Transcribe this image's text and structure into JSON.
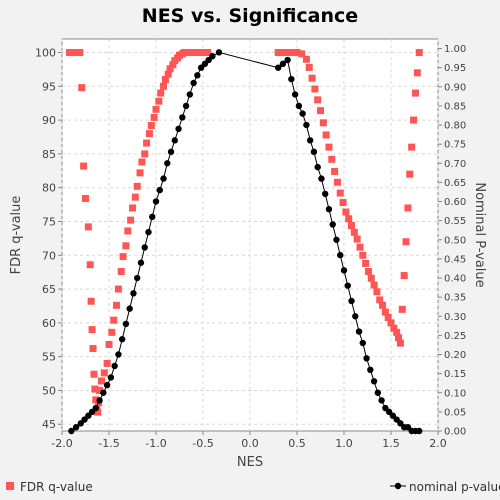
{
  "chart_data": {
    "type": "scatter",
    "title": "NES vs. Significance",
    "xlabel": "NES",
    "ylabel": "FDR q-value",
    "y2label": "Nominal P-value",
    "xlim": [
      -2.0,
      2.0
    ],
    "ylim": [
      44,
      102
    ],
    "y2lim": [
      0.0,
      1.025
    ],
    "xticks": [
      "-2.0",
      "-1.5",
      "-1.0",
      "-0.5",
      "0.0",
      "0.5",
      "1.0",
      "1.5",
      "2.0"
    ],
    "yticks": [
      "45",
      "50",
      "55",
      "60",
      "65",
      "70",
      "75",
      "80",
      "85",
      "90",
      "95",
      "100"
    ],
    "y2ticks": [
      "0.00",
      "0.05",
      "0.10",
      "0.15",
      "0.20",
      "0.25",
      "0.30",
      "0.35",
      "0.40",
      "0.45",
      "0.50",
      "0.55",
      "0.60",
      "0.65",
      "0.70",
      "0.75",
      "0.80",
      "0.85",
      "0.90",
      "0.95",
      "1.00"
    ],
    "grid": true,
    "legend_position": "bottom",
    "series": [
      {
        "name": "FDR q-value",
        "axis": "left",
        "color": "#ff5555",
        "marker": "square",
        "x": [
          -1.92,
          -1.88,
          -1.83,
          -1.81,
          -1.79,
          -1.77,
          -1.75,
          -1.72,
          -1.7,
          -1.69,
          -1.68,
          -1.67,
          -1.66,
          -1.65,
          -1.64,
          -1.63,
          -1.62,
          -1.61,
          -1.6,
          -1.58,
          -1.55,
          -1.52,
          -1.5,
          -1.47,
          -1.45,
          -1.42,
          -1.4,
          -1.37,
          -1.35,
          -1.32,
          -1.3,
          -1.27,
          -1.25,
          -1.22,
          -1.2,
          -1.17,
          -1.15,
          -1.12,
          -1.1,
          -1.07,
          -1.05,
          -1.02,
          -1.0,
          -0.97,
          -0.95,
          -0.92,
          -0.9,
          -0.87,
          -0.85,
          -0.82,
          -0.8,
          -0.77,
          -0.75,
          -0.72,
          -0.7,
          -0.67,
          -0.65,
          -0.62,
          -0.6,
          -0.57,
          -0.55,
          -0.52,
          -0.5,
          -0.47,
          -0.45,
          0.3,
          0.35,
          0.4,
          0.45,
          0.5,
          0.55,
          0.6,
          0.63,
          0.66,
          0.69,
          0.72,
          0.75,
          0.78,
          0.81,
          0.84,
          0.87,
          0.9,
          0.93,
          0.96,
          0.99,
          1.02,
          1.05,
          1.08,
          1.11,
          1.14,
          1.17,
          1.2,
          1.23,
          1.26,
          1.29,
          1.32,
          1.35,
          1.38,
          1.41,
          1.44,
          1.47,
          1.5,
          1.53,
          1.56,
          1.58,
          1.6,
          1.62,
          1.64,
          1.66,
          1.68,
          1.7,
          1.72,
          1.74,
          1.76,
          1.78,
          1.8
        ],
        "y": [
          100.0,
          100.0,
          100.0,
          100.0,
          94.8,
          83.2,
          78.4,
          74.2,
          68.6,
          63.2,
          59.0,
          56.2,
          52.4,
          50.2,
          48.6,
          47.2,
          46.8,
          48.2,
          50.0,
          51.4,
          52.6,
          54.0,
          56.8,
          58.6,
          60.4,
          62.6,
          65.0,
          67.6,
          69.8,
          71.4,
          73.6,
          75.2,
          77.0,
          78.6,
          80.2,
          82.2,
          83.8,
          85.0,
          86.6,
          88.0,
          89.2,
          90.4,
          91.6,
          92.8,
          94.0,
          95.0,
          96.0,
          96.8,
          97.6,
          98.2,
          98.8,
          99.2,
          99.6,
          99.8,
          100.0,
          100.0,
          100.0,
          100.0,
          100.0,
          100.0,
          100.0,
          100.0,
          100.0,
          100.0,
          100.0,
          100.0,
          100.0,
          100.0,
          100.0,
          100.0,
          99.8,
          99.0,
          97.8,
          96.2,
          94.6,
          93.0,
          91.4,
          89.6,
          87.8,
          86.0,
          84.2,
          82.4,
          80.8,
          79.2,
          77.8,
          76.4,
          75.4,
          74.4,
          73.4,
          72.4,
          71.2,
          70.0,
          68.8,
          67.6,
          66.6,
          65.6,
          64.6,
          63.4,
          62.6,
          61.6,
          60.8,
          60.0,
          59.2,
          58.6,
          57.8,
          57.0,
          62.0,
          67.0,
          72.0,
          77.0,
          82.0,
          86.0,
          90.0,
          94.0,
          97.0,
          100.0
        ]
      },
      {
        "name": "nominal p-value",
        "axis": "right",
        "color": "#000000",
        "marker": "circle",
        "line": true,
        "x": [
          -1.9,
          -1.85,
          -1.8,
          -1.76,
          -1.72,
          -1.68,
          -1.64,
          -1.6,
          -1.56,
          -1.52,
          -1.48,
          -1.44,
          -1.4,
          -1.36,
          -1.32,
          -1.28,
          -1.24,
          -1.2,
          -1.16,
          -1.12,
          -1.08,
          -1.04,
          -1.0,
          -0.96,
          -0.92,
          -0.88,
          -0.84,
          -0.8,
          -0.76,
          -0.72,
          -0.68,
          -0.64,
          -0.6,
          -0.56,
          -0.52,
          -0.48,
          -0.44,
          -0.4,
          -0.33,
          0.3,
          0.35,
          0.4,
          0.44,
          0.48,
          0.52,
          0.56,
          0.6,
          0.64,
          0.68,
          0.72,
          0.76,
          0.8,
          0.84,
          0.88,
          0.92,
          0.96,
          1.0,
          1.04,
          1.08,
          1.12,
          1.16,
          1.2,
          1.24,
          1.28,
          1.32,
          1.36,
          1.4,
          1.44,
          1.48,
          1.52,
          1.56,
          1.6,
          1.64,
          1.68,
          1.72,
          1.76,
          1.8
        ],
        "y": [
          0.0,
          0.01,
          0.02,
          0.03,
          0.04,
          0.05,
          0.06,
          0.08,
          0.1,
          0.12,
          0.14,
          0.17,
          0.2,
          0.24,
          0.28,
          0.32,
          0.36,
          0.4,
          0.44,
          0.48,
          0.52,
          0.56,
          0.6,
          0.63,
          0.66,
          0.7,
          0.73,
          0.76,
          0.79,
          0.82,
          0.85,
          0.88,
          0.91,
          0.93,
          0.95,
          0.96,
          0.97,
          0.98,
          0.99,
          0.95,
          0.96,
          0.97,
          0.92,
          0.88,
          0.85,
          0.83,
          0.8,
          0.76,
          0.73,
          0.69,
          0.66,
          0.62,
          0.58,
          0.54,
          0.5,
          0.46,
          0.42,
          0.38,
          0.34,
          0.3,
          0.26,
          0.23,
          0.19,
          0.16,
          0.13,
          0.1,
          0.08,
          0.06,
          0.05,
          0.04,
          0.03,
          0.02,
          0.01,
          0.01,
          0.0,
          0.0,
          0.0
        ]
      }
    ]
  }
}
